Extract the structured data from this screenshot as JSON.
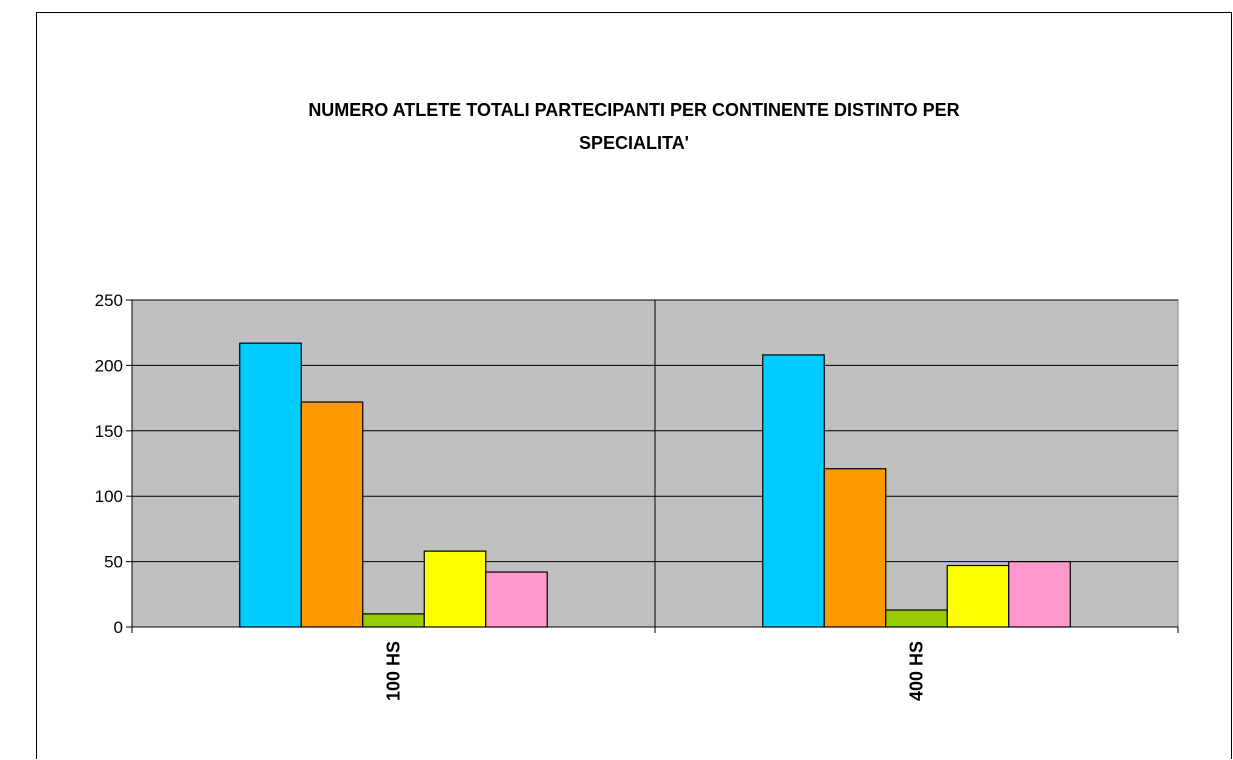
{
  "chart_data": {
    "type": "bar",
    "title_line1": "NUMERO ATLETE TOTALI PARTECIPANTI PER CONTINENTE DISTINTO PER",
    "title_line2": "SPECIALITA'",
    "categories": [
      "100 HS",
      "400 HS"
    ],
    "series": [
      {
        "color": "#00ccff",
        "values": [
          217,
          208
        ]
      },
      {
        "color": "#ff9900",
        "values": [
          172,
          121
        ]
      },
      {
        "color": "#99cc00",
        "values": [
          10,
          13
        ]
      },
      {
        "color": "#ffff00",
        "values": [
          58,
          47
        ]
      },
      {
        "color": "#ff99cc",
        "values": [
          42,
          50
        ]
      }
    ],
    "ylim": [
      0,
      250
    ],
    "yticks": [
      0,
      50,
      100,
      150,
      200,
      250
    ],
    "plot_background": "#c0c0c0",
    "grid": true,
    "legend": "none"
  }
}
